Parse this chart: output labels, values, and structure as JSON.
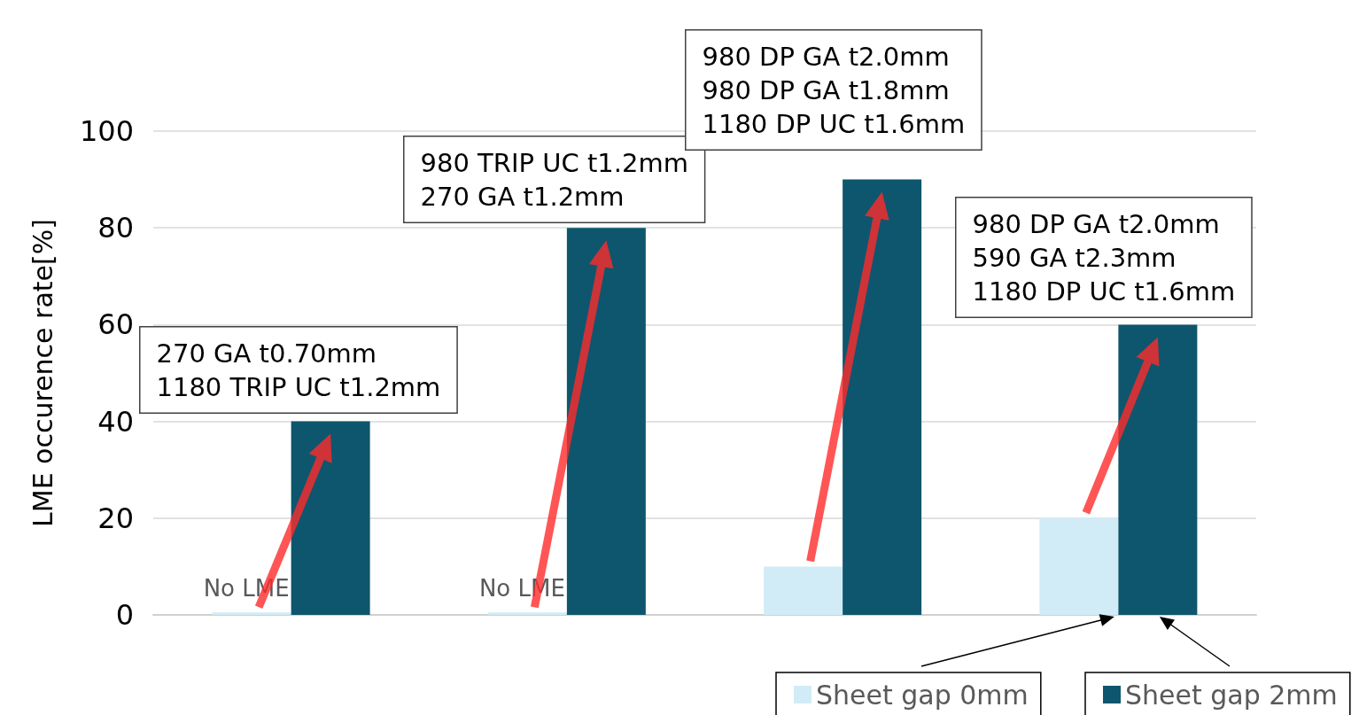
{
  "chart_data": {
    "type": "bar",
    "ylabel": "LME occurence rate[%]",
    "categories": [
      null,
      null,
      null,
      null
    ],
    "series": [
      {
        "name": "Sheet gap 0mm",
        "color": "#d1ecf6",
        "values": [
          0.5,
          0.5,
          10,
          20
        ]
      },
      {
        "name": "Sheet gap 2mm",
        "color": "#0e566e",
        "values": [
          40,
          80,
          90,
          60
        ]
      }
    ],
    "ylim": [
      0,
      100
    ],
    "yticks": [
      0,
      20,
      40,
      60,
      80,
      100
    ],
    "grid": "y",
    "legend": "bottom right",
    "annotations": [
      "270 GA t0.70mm\n1180 TRIP UC t1.2mm",
      "980 TRIP UC t1.2mm\n270 GA t1.2mm",
      "980 DP GA t2.0mm\n980 DP GA t1.8mm\n1180 DP UC t1.6mm",
      "980 DP GA t2.0mm\n590 GA t2.3mm\n1180 DP UC t1.6mm",
      "No LME",
      "No LME"
    ]
  }
}
